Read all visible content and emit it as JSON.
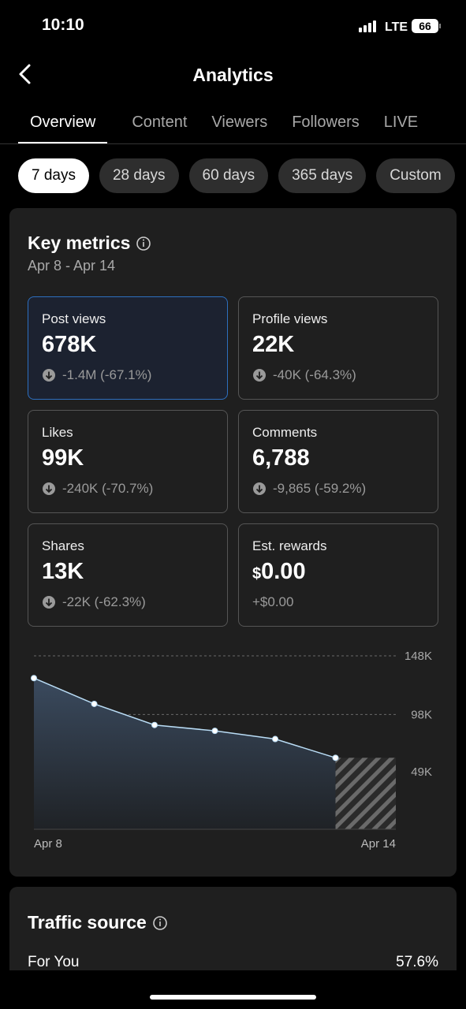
{
  "status": {
    "time": "10:10",
    "network": "LTE",
    "battery": "66"
  },
  "header": {
    "title": "Analytics"
  },
  "tabs": [
    "Overview",
    "Content",
    "Viewers",
    "Followers",
    "LIVE"
  ],
  "ranges": [
    "7 days",
    "28 days",
    "60 days",
    "365 days",
    "Custom"
  ],
  "key_metrics": {
    "title": "Key metrics",
    "date_range": "Apr 8 - Apr 14",
    "cards": [
      {
        "label": "Post views",
        "value": "678K",
        "change": "-1.4M (-67.1%)"
      },
      {
        "label": "Profile views",
        "value": "22K",
        "change": "-40K (-64.3%)"
      },
      {
        "label": "Likes",
        "value": "99K",
        "change": "-240K (-70.7%)"
      },
      {
        "label": "Comments",
        "value": "6,788",
        "change": "-9,865 (-59.2%)"
      },
      {
        "label": "Shares",
        "value": "13K",
        "change": "-22K (-62.3%)"
      },
      {
        "label": "Est. rewards",
        "currency": "$",
        "value": "0.00",
        "change": "+$0.00"
      }
    ]
  },
  "chart_data": {
    "type": "line",
    "categories": [
      "Apr 8",
      null,
      null,
      null,
      null,
      null,
      "Apr 14"
    ],
    "values": [
      129000,
      107000,
      89000,
      84000,
      77000,
      61000,
      null
    ],
    "color": "#b9dcf5",
    "ylim": [
      0,
      148000
    ],
    "yticks": [
      {
        "value": 49000,
        "label": "49K"
      },
      {
        "value": 98000,
        "label": "98K"
      },
      {
        "value": 148000,
        "label": "148K"
      }
    ],
    "grid": true
  },
  "traffic_source": {
    "title": "Traffic source",
    "rows": [
      {
        "label": "For You",
        "value": "57.6%"
      }
    ]
  }
}
